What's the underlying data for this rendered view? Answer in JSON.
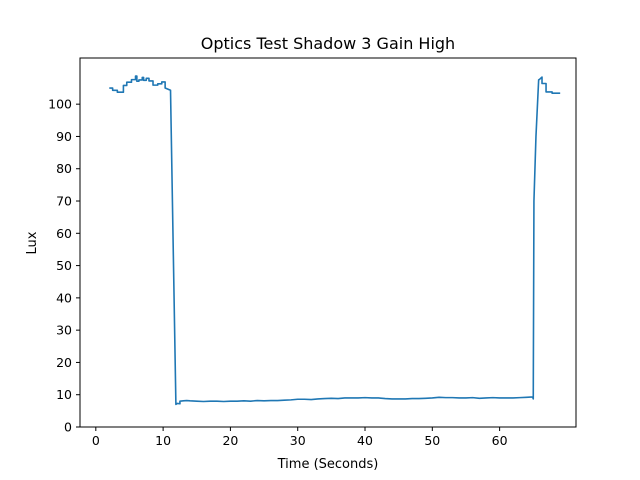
{
  "chart_data": {
    "type": "line",
    "title": "Optics Test Shadow 3 Gain High",
    "xlabel": "Time (Seconds)",
    "ylabel": "Lux",
    "xlim": [
      -2.35,
      71.35
    ],
    "ylim": [
      0,
      114.3
    ],
    "xticks": [
      0,
      10,
      20,
      30,
      40,
      50,
      60
    ],
    "yticks": [
      0,
      10,
      20,
      30,
      40,
      50,
      60,
      70,
      80,
      90,
      100
    ],
    "grid": false,
    "legend": false,
    "line_color": "#1f77b4",
    "series": [
      {
        "x": [
          2.0,
          2.5,
          2.5,
          3.2,
          3.2,
          4.1,
          4.1,
          4.6,
          4.6,
          5.3,
          5.3,
          5.9,
          5.9,
          6.1,
          6.1,
          6.4,
          6.4,
          6.9,
          6.9,
          7.1,
          7.1,
          7.5,
          7.5,
          7.9,
          7.9,
          8.5,
          8.5,
          9.2,
          9.2,
          9.8,
          9.8,
          10.3,
          10.3,
          11.1,
          11.9,
          12.1,
          12.5,
          12.5,
          13.0,
          13.5,
          14.0,
          15.0,
          16.0,
          17.0,
          18.0,
          19.0,
          20.0,
          21.0,
          22.0,
          23.0,
          24.0,
          25.0,
          26.0,
          27.0,
          28.0,
          29.0,
          30.0,
          31.0,
          32.0,
          33.0,
          34.0,
          35.0,
          36.0,
          37.0,
          38.0,
          39.0,
          40.0,
          41.0,
          42.0,
          43.0,
          44.0,
          45.0,
          46.0,
          47.0,
          48.0,
          49.0,
          50.0,
          51.0,
          52.0,
          53.0,
          54.0,
          55.0,
          56.0,
          57.0,
          58.0,
          59.0,
          60.0,
          61.0,
          62.0,
          63.0,
          64.0,
          64.9,
          65.0,
          65.1,
          65.4,
          65.8,
          66.0,
          66.3,
          66.3,
          66.9,
          66.9,
          67.8,
          67.8,
          69.0
        ],
        "y": [
          105.0,
          105.0,
          104.3,
          104.3,
          103.7,
          103.7,
          105.8,
          105.8,
          106.8,
          106.8,
          107.6,
          107.6,
          108.7,
          108.7,
          107.1,
          107.1,
          107.5,
          107.5,
          108.3,
          108.3,
          107.4,
          107.4,
          108.0,
          108.0,
          107.2,
          107.2,
          105.9,
          105.9,
          106.3,
          106.3,
          106.9,
          106.9,
          105.0,
          104.3,
          7.0,
          7.3,
          7.2,
          8.0,
          8.1,
          8.2,
          8.1,
          8.0,
          7.9,
          8.0,
          8.0,
          7.9,
          8.0,
          8.0,
          8.1,
          8.0,
          8.2,
          8.1,
          8.2,
          8.2,
          8.3,
          8.4,
          8.6,
          8.6,
          8.5,
          8.7,
          8.8,
          8.9,
          8.8,
          9.0,
          9.0,
          9.0,
          9.1,
          9.0,
          9.0,
          8.8,
          8.7,
          8.7,
          8.7,
          8.8,
          8.8,
          8.9,
          9.0,
          9.2,
          9.1,
          9.1,
          9.0,
          9.0,
          9.1,
          8.9,
          9.0,
          9.1,
          9.0,
          9.0,
          9.0,
          9.1,
          9.2,
          9.3,
          8.7,
          70.0,
          90.0,
          107.5,
          107.8,
          108.4,
          106.4,
          106.4,
          103.8,
          103.8,
          103.4,
          103.4
        ]
      }
    ]
  }
}
